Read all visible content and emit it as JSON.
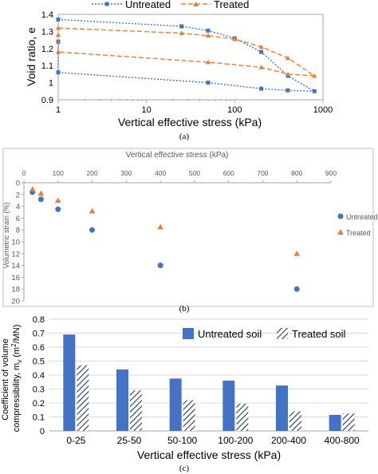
{
  "colors": {
    "untreated": "#4472C4",
    "treated": "#ED7D31",
    "axis": "#A6A6A6",
    "grid": "#D9D9D9",
    "text": "#000000",
    "muted": "#595959"
  },
  "chart_data": [
    {
      "type": "line",
      "panel_label": "(a)",
      "xlabel": "Vertical effective stress (kPa)",
      "ylabel": "Void ratio, e",
      "x_scale": "log",
      "xlim": [
        1,
        1000
      ],
      "ylim": [
        0.9,
        1.4
      ],
      "x_ticks": [
        "1",
        "10",
        "100",
        "1000"
      ],
      "y_ticks": [
        "0.9",
        "1",
        "1.1",
        "1.2",
        "1.3",
        "1.4"
      ],
      "legend_position": "top",
      "grid": false,
      "series": [
        {
          "name": "Untreated",
          "marker": "square",
          "line": "dotted",
          "x": [
            1,
            25,
            50,
            100,
            200,
            400,
            800,
            400,
            200,
            50,
            1,
            1
          ],
          "y": [
            1.37,
            1.33,
            1.305,
            1.26,
            1.18,
            1.04,
            0.95,
            0.955,
            0.965,
            1.0,
            1.06,
            1.24
          ]
        },
        {
          "name": "Treated",
          "marker": "triangle",
          "line": "dashed",
          "x": [
            1,
            25,
            50,
            100,
            200,
            400,
            800,
            400,
            200,
            50,
            1,
            1
          ],
          "y": [
            1.32,
            1.29,
            1.275,
            1.255,
            1.21,
            1.145,
            1.04,
            1.05,
            1.09,
            1.12,
            1.18,
            1.28
          ]
        }
      ]
    },
    {
      "type": "scatter",
      "panel_label": "(b)",
      "xlabel": "Vertical effective stress (kPa)",
      "ylabel": "Volumetric strain (%)",
      "xlim": [
        0,
        900
      ],
      "ylim": [
        0,
        20
      ],
      "y_reversed": true,
      "x_axis_position": "top",
      "x_ticks": [
        "0",
        "100",
        "200",
        "300",
        "400",
        "500",
        "600",
        "700",
        "800",
        "900"
      ],
      "y_ticks": [
        "0",
        "2",
        "4",
        "6",
        "8",
        "10",
        "12",
        "14",
        "16",
        "18",
        "20"
      ],
      "legend_position": "right",
      "grid": false,
      "series": [
        {
          "name": "Untreated",
          "marker": "circle",
          "x": [
            25,
            50,
            100,
            200,
            400,
            800
          ],
          "y": [
            1.6,
            2.8,
            4.5,
            8.0,
            14.0,
            18.0
          ]
        },
        {
          "name": "Treated",
          "marker": "triangle",
          "x": [
            25,
            50,
            100,
            200,
            400,
            800
          ],
          "y": [
            1.1,
            1.8,
            3.0,
            4.8,
            7.5,
            12.0
          ]
        }
      ]
    },
    {
      "type": "bar",
      "panel_label": "(c)",
      "xlabel": "Vertical effective stress (kPa)",
      "ylabel_line1": "Coefficient of volume",
      "ylabel_line2": "compressibility, m",
      "ylabel_sub": "v",
      "ylabel_tail": " (m",
      "ylabel_sup": "2",
      "ylabel_end": "/MN)",
      "categories": [
        "0-25",
        "25-50",
        "50-100",
        "100-200",
        "200-400",
        "400-800"
      ],
      "ylim": [
        0,
        0.8
      ],
      "y_ticks": [
        "0",
        "0.1",
        "0.2",
        "0.3",
        "0.4",
        "0.5",
        "0.6",
        "0.7",
        "0.8"
      ],
      "legend_position": "top",
      "grid": true,
      "series": [
        {
          "name": "Untreated soil",
          "fill": "solid",
          "values": [
            0.69,
            0.44,
            0.375,
            0.36,
            0.325,
            0.115
          ]
        },
        {
          "name": "Treated soil",
          "fill": "hatched",
          "values": [
            0.47,
            0.29,
            0.22,
            0.195,
            0.14,
            0.125
          ]
        }
      ]
    }
  ]
}
